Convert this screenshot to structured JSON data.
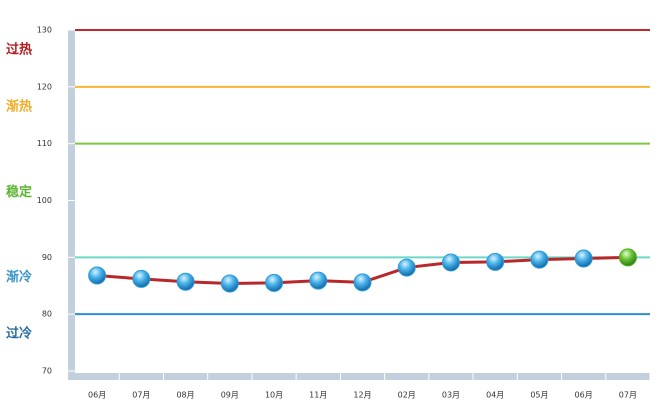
{
  "chart_data": {
    "type": "line",
    "categories": [
      "06月",
      "07月",
      "08月",
      "09月",
      "10月",
      "11月",
      "12月",
      "02月",
      "03月",
      "04月",
      "05月",
      "06月",
      "07月"
    ],
    "series": [
      {
        "color": "#b8282a",
        "marker_color": "#2e9ad6",
        "last_marker_color": "#4caf20",
        "values": [
          86.8,
          86.2,
          85.7,
          85.4,
          85.5,
          85.9,
          85.6,
          88.2,
          89.1,
          89.2,
          89.6,
          89.8,
          90.0
        ]
      }
    ],
    "ylim": [
      70,
      130
    ],
    "yticks": [
      70,
      80,
      90,
      100,
      110,
      120,
      130
    ],
    "thresholds": [
      {
        "value": 130,
        "color": "#c0282c",
        "label": "过热",
        "label_color": "#b01e22"
      },
      {
        "value": 120,
        "color": "#f5b731",
        "label": "渐热",
        "label_color": "#f0ad2a"
      },
      {
        "value": 110,
        "color": "#7ac943",
        "label": "稳定",
        "label_color": "#5cb531"
      },
      {
        "value": 90,
        "color": "#6fd6c8",
        "label": "渐冷",
        "label_color": "#3a97c9"
      },
      {
        "value": 80,
        "color": "#2a8fd0",
        "label": "过冷",
        "label_color": "#2b6ea3"
      }
    ]
  }
}
